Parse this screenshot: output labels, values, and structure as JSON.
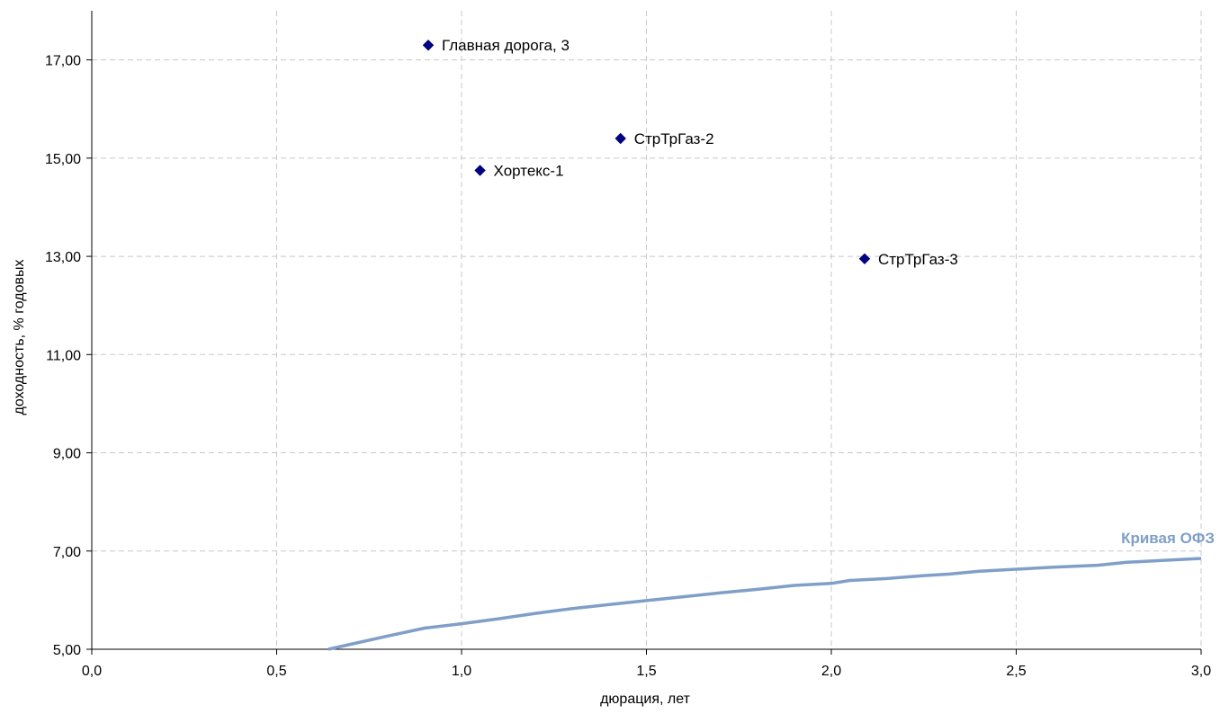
{
  "chart_data": {
    "type": "scatter",
    "xlabel": "дюрация, лет",
    "ylabel": "доходность, % годовых",
    "xlim": [
      0,
      3
    ],
    "ylim": [
      5,
      18
    ],
    "x_ticks": [
      "0,0",
      "0,5",
      "1,0",
      "1,5",
      "2,0",
      "2,5",
      "3,0"
    ],
    "x_tick_values": [
      0,
      0.5,
      1.0,
      1.5,
      2.0,
      2.5,
      3.0
    ],
    "y_ticks": [
      "5,00",
      "7,00",
      "9,00",
      "11,00",
      "13,00",
      "15,00",
      "17,00"
    ],
    "y_tick_values": [
      5,
      7,
      9,
      11,
      13,
      15,
      17
    ],
    "grid": true,
    "points": [
      {
        "label": "Главная дорога, 3",
        "x": 0.91,
        "y": 17.3
      },
      {
        "label": "Хортекс-1",
        "x": 1.05,
        "y": 14.75
      },
      {
        "label": "СтрТрГаз-2",
        "x": 1.43,
        "y": 15.4
      },
      {
        "label": "СтрТрГаз-3",
        "x": 2.09,
        "y": 12.95
      }
    ],
    "points_color": "#000080",
    "curve": {
      "name": "Кривая ОФЗ",
      "color": "#7f9fc8",
      "x": [
        0.64,
        0.7,
        0.8,
        0.9,
        1.0,
        1.1,
        1.2,
        1.3,
        1.4,
        1.5,
        1.6,
        1.7,
        1.8,
        1.9,
        2.0,
        2.05,
        2.15,
        2.25,
        2.32,
        2.4,
        2.5,
        2.6,
        2.72,
        2.8,
        3.0
      ],
      "y": [
        5.0,
        5.1,
        5.27,
        5.43,
        5.52,
        5.62,
        5.73,
        5.83,
        5.91,
        5.99,
        6.07,
        6.15,
        6.22,
        6.3,
        6.34,
        6.4,
        6.44,
        6.5,
        6.53,
        6.59,
        6.63,
        6.67,
        6.71,
        6.77,
        6.85
      ]
    }
  }
}
